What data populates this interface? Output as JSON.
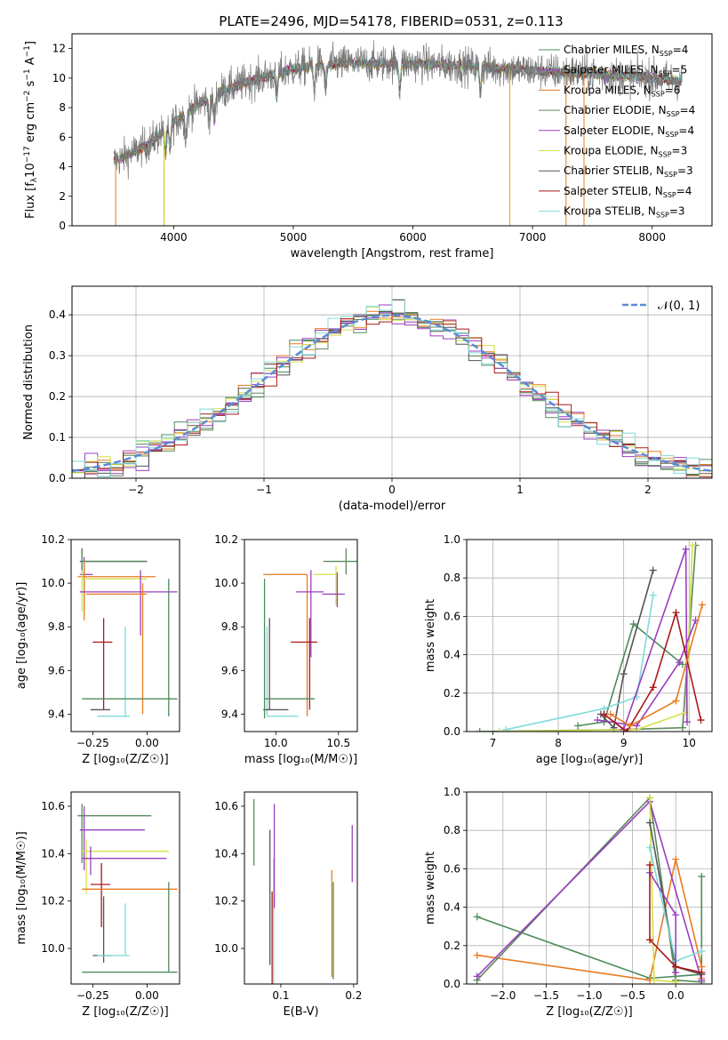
{
  "figure_title": "PLATE=2496, MJD=54178, FIBERID=0531, z=0.113",
  "colors": [
    "#4c8c5c",
    "#9a3fc0",
    "#e87c20",
    "#5a8a5a",
    "#9a3fc0",
    "#d4e04a",
    "#555555",
    "#aa1a1a",
    "#80dada"
  ],
  "model_colors": [
    "#5c9c6c",
    "#9a3fc0",
    "#e87c20",
    "#5a8a5a",
    "#a63fc8",
    "#d4e84a",
    "#555555",
    "#aa1a1a",
    "#80dada"
  ],
  "chart_data": [
    {
      "id": "spectrum",
      "type": "line",
      "title": "PLATE=2496, MJD=54178, FIBERID=0531, z=0.113",
      "xlabel": "wavelength [Angstrom, rest frame]",
      "ylabel": "Flux [f$_\\lambda$10$^{-17}$ erg cm$^{-2}$ s$^{-1}$ A$^{-1}$]",
      "ylabel_main": "Flux [f",
      "ylabel_sub": "λ",
      "ylabel_mid": "10",
      "ylabel_sup": "−17",
      "ylabel_tail": " erg cm",
      "ylabel_sup2": "−2",
      "ylabel_tail2": " s",
      "ylabel_sup3": "−1",
      "ylabel_tail3": " A",
      "ylabel_sup4": "−1",
      "ylabel_end": "]",
      "xlim": [
        3150,
        8500
      ],
      "ylim": [
        0,
        13
      ],
      "xticks": [
        "4000",
        "5000",
        "6000",
        "7000",
        "8000"
      ],
      "xtick_values": [
        4000,
        5000,
        6000,
        7000,
        8000
      ],
      "yticks": [
        "0",
        "2",
        "4",
        "6",
        "8",
        "10",
        "12"
      ],
      "ytick_values": [
        0,
        2,
        4,
        6,
        8,
        10,
        12
      ],
      "continuum": {
        "x": [
          3500,
          3600,
          3800,
          4000,
          4200,
          4400,
          4600,
          4800,
          5000,
          5200,
          5500,
          6000,
          6500,
          7000,
          7500,
          8000,
          8250
        ],
        "y": [
          4.4,
          4.7,
          5.6,
          7.0,
          8.2,
          9.1,
          9.7,
          10.2,
          10.6,
          10.9,
          11.0,
          11.0,
          10.8,
          10.5,
          10.3,
          10.0,
          9.8
        ]
      },
      "legend": [
        {
          "label": "Chabrier MILES, N",
          "sub": "SSP",
          "val": "=4"
        },
        {
          "label": "Salpeter MILES, N",
          "sub": "SSP",
          "val": "=5"
        },
        {
          "label": "Kroupa MILES, N",
          "sub": "SSP",
          "val": "=6"
        },
        {
          "label": "Chabrier ELODIE, N",
          "sub": "SSP",
          "val": "=4"
        },
        {
          "label": "Salpeter ELODIE, N",
          "sub": "SSP",
          "val": "=4"
        },
        {
          "label": "Kroupa ELODIE, N",
          "sub": "SSP",
          "val": "=3"
        },
        {
          "label": "Chabrier STELIB, N",
          "sub": "SSP",
          "val": "=3"
        },
        {
          "label": "Salpeter STELIB, N",
          "sub": "SSP",
          "val": "=4"
        },
        {
          "label": "Kroupa STELIB, N",
          "sub": "SSP",
          "val": "=3"
        }
      ]
    },
    {
      "id": "residuals",
      "type": "step",
      "xlabel": "(data-model)/error",
      "ylabel": "Normed distribution",
      "xlim": [
        -2.5,
        2.5
      ],
      "ylim": [
        0,
        0.47
      ],
      "xticks": [
        "−2",
        "−1",
        "0",
        "1",
        "2"
      ],
      "xtick_values": [
        -2,
        -1,
        0,
        1,
        2
      ],
      "yticks": [
        "0.0",
        "0.1",
        "0.2",
        "0.3",
        "0.4"
      ],
      "ytick_values": [
        0,
        0.1,
        0.2,
        0.3,
        0.4
      ],
      "legend_label": "𝒩(0, 1)",
      "grid": true
    },
    {
      "id": "age-vs-Z",
      "type": "errorbar",
      "xlabel": "Z [log₁₀(Z/Z☉)]",
      "ylabel": "age  [log₁₀(age/yr)]",
      "xlim": [
        -0.35,
        0.15
      ],
      "ylim": [
        9.32,
        10.2
      ],
      "xticks": [
        "−0.25",
        "0.00"
      ],
      "xtick_values": [
        -0.25,
        0.0
      ],
      "yticks": [
        "9.4",
        "9.6",
        "9.8",
        "10.0",
        "10.2"
      ],
      "ytick_values": [
        9.4,
        9.6,
        9.8,
        10.0,
        10.2
      ],
      "points": [
        {
          "x": -0.3,
          "xerr": [
            0.01,
            0.3
          ],
          "y": 10.1,
          "yerr": [
            0.06,
            0.06
          ],
          "c": 6
        },
        {
          "x": -0.3,
          "xerr": [
            0.0,
            0.3
          ],
          "y": 10.1,
          "yerr": [
            0.07,
            0.06
          ],
          "c": 3
        },
        {
          "x": -0.29,
          "xerr": [
            0.02,
            0.04
          ],
          "y": 10.04,
          "yerr": [
            0.16,
            0.08
          ],
          "c": 1
        },
        {
          "x": -0.29,
          "xerr": [
            0.03,
            0.33
          ],
          "y": 10.03,
          "yerr": [
            0.2,
            0.07
          ],
          "c": 2
        },
        {
          "x": -0.3,
          "xerr": [
            0.0,
            0.3
          ],
          "y": 10.02,
          "yerr": [
            0.15,
            0.04
          ],
          "c": 5
        },
        {
          "x": -0.03,
          "xerr": [
            0.28,
            0.17
          ],
          "y": 9.96,
          "yerr": [
            0.2,
            0.1
          ],
          "c": 4
        },
        {
          "x": -0.02,
          "xerr": [
            0.26,
            0.02
          ],
          "y": 9.95,
          "yerr": [
            0.55,
            0.05
          ],
          "c": 2
        },
        {
          "x": -0.2,
          "xerr": [
            0.05,
            0.04
          ],
          "y": 9.73,
          "yerr": [
            0.31,
            0.11
          ],
          "c": 7
        },
        {
          "x": -0.22,
          "xerr": [
            0.04,
            0.05
          ],
          "y": 9.42,
          "yerr": [
            0.0,
            0.0
          ],
          "c": 6
        },
        {
          "x": -0.1,
          "xerr": [
            0.13,
            0.02
          ],
          "y": 9.39,
          "yerr": [
            0.0,
            0.41
          ],
          "c": 8
        },
        {
          "x": 0.1,
          "xerr": [
            0.4,
            0.04
          ],
          "y": 9.47,
          "yerr": [
            0.08,
            0.55
          ],
          "c": 0
        }
      ]
    },
    {
      "id": "age-vs-mass",
      "type": "errorbar",
      "xlabel": "mass [log₁₀(M/M☉)]",
      "xlim": [
        9.75,
        10.65
      ],
      "ylim": [
        9.32,
        10.2
      ],
      "xticks": [
        "10.0",
        "10.5"
      ],
      "xtick_values": [
        10.0,
        10.5
      ],
      "yticks": [
        "9.4",
        "9.6",
        "9.8",
        "10.0",
        "10.2"
      ],
      "ytick_values": [
        9.4,
        9.6,
        9.8,
        10.0,
        10.2
      ],
      "points": [
        {
          "x": 10.56,
          "xerr": [
            0.18,
            0.1
          ],
          "y": 10.1,
          "yerr": [
            0.06,
            0.06
          ],
          "c": 3
        },
        {
          "x": 10.25,
          "xerr": [
            0.35,
            0.0
          ],
          "y": 10.04,
          "yerr": [
            0.65,
            0.0
          ],
          "c": 2
        },
        {
          "x": 10.48,
          "xerr": [
            0.18,
            0.0
          ],
          "y": 10.04,
          "yerr": [
            0.14,
            0.04
          ],
          "c": 5
        },
        {
          "x": 10.49,
          "xerr": [
            0.12,
            0.06
          ],
          "y": 9.95,
          "yerr": [
            0.06,
            0.1
          ],
          "c": 1
        },
        {
          "x": 10.28,
          "xerr": [
            0.12,
            0.1
          ],
          "y": 9.96,
          "yerr": [
            0.3,
            0.1
          ],
          "c": 4
        },
        {
          "x": 10.27,
          "xerr": [
            0.15,
            0.06
          ],
          "y": 9.73,
          "yerr": [
            0.31,
            0.11
          ],
          "c": 7
        },
        {
          "x": 9.93,
          "xerr": [
            0.0,
            0.25
          ],
          "y": 9.39,
          "yerr": [
            0.0,
            0.41
          ],
          "c": 8
        },
        {
          "x": 9.95,
          "xerr": [
            0.05,
            0.15
          ],
          "y": 9.42,
          "yerr": [
            0.0,
            0.42
          ],
          "c": 6
        },
        {
          "x": 9.91,
          "xerr": [
            0.0,
            0.4
          ],
          "y": 9.47,
          "yerr": [
            0.09,
            0.55
          ],
          "c": 0
        }
      ]
    },
    {
      "id": "weight-vs-age",
      "type": "line",
      "xlabel": "age  [log₁₀(age/yr)]",
      "ylabel": "mass weight",
      "xlim": [
        6.6,
        10.35
      ],
      "ylim": [
        0,
        1.0
      ],
      "xticks": [
        "7",
        "8",
        "9",
        "10"
      ],
      "xtick_values": [
        7,
        8,
        9,
        10
      ],
      "yticks": [
        "0.0",
        "0.2",
        "0.4",
        "0.6",
        "0.8",
        "1.0"
      ],
      "ytick_values": [
        0,
        0.2,
        0.4,
        0.6,
        0.8,
        1.0
      ],
      "grid": true,
      "series": [
        {
          "c": 0,
          "x": [
            8.3,
            8.7,
            9.15,
            9.9
          ],
          "y": [
            0.03,
            0.05,
            0.56,
            0.35
          ]
        },
        {
          "c": 3,
          "x": [
            6.8,
            9.0,
            9.9,
            10.1
          ],
          "y": [
            0.0,
            0.01,
            0.02,
            0.97
          ]
        },
        {
          "c": 6,
          "x": [
            8.65,
            8.85,
            9.0,
            9.45
          ],
          "y": [
            0.09,
            0.02,
            0.3,
            0.84
          ]
        },
        {
          "c": 8,
          "x": [
            7.2,
            8.7,
            9.2,
            9.45
          ],
          "y": [
            0.01,
            0.12,
            0.18,
            0.71
          ]
        },
        {
          "c": 5,
          "x": [
            7.1,
            9.2,
            9.95,
            10.05
          ],
          "y": [
            0.0,
            0.01,
            0.1,
            0.97
          ]
        },
        {
          "c": 1,
          "x": [
            8.7,
            9.0,
            9.95,
            9.97
          ],
          "y": [
            0.09,
            0.01,
            0.95,
            0.05
          ]
        },
        {
          "c": 4,
          "x": [
            8.6,
            9.2,
            9.85,
            10.1
          ],
          "y": [
            0.06,
            0.03,
            0.36,
            0.58
          ]
        },
        {
          "c": 7,
          "x": [
            8.7,
            9.05,
            9.45,
            9.8,
            10.18
          ],
          "y": [
            0.09,
            0.0,
            0.23,
            0.62,
            0.06
          ]
        },
        {
          "c": 2,
          "x": [
            8.8,
            9.1,
            9.8,
            10.2
          ],
          "y": [
            0.09,
            0.03,
            0.16,
            0.66
          ]
        }
      ]
    },
    {
      "id": "mass-vs-Z",
      "type": "errorbar",
      "xlabel": "Z [log₁₀(Z/Z☉)]",
      "ylabel": "mass [log₁₀(M/M☉)]",
      "xlim": [
        -0.35,
        0.15
      ],
      "ylim": [
        9.85,
        10.66
      ],
      "xticks": [
        "−0.25",
        "0.00"
      ],
      "xtick_values": [
        -0.25,
        0.0
      ],
      "yticks": [
        "10.0",
        "10.2",
        "10.4",
        "10.6"
      ],
      "ytick_values": [
        10.0,
        10.2,
        10.4,
        10.6
      ],
      "points": [
        {
          "x": -0.3,
          "xerr": [
            0.02,
            0.32
          ],
          "y": 10.56,
          "yerr": [
            0.2,
            0.05
          ],
          "c": 3
        },
        {
          "x": -0.29,
          "xerr": [
            0.02,
            0.28
          ],
          "y": 10.5,
          "yerr": [
            0.17,
            0.1
          ],
          "c": 1
        },
        {
          "x": -0.28,
          "xerr": [
            0.02,
            0.38
          ],
          "y": 10.41,
          "yerr": [
            0.18,
            0.05
          ],
          "c": 5
        },
        {
          "x": -0.26,
          "xerr": [
            0.04,
            0.35
          ],
          "y": 10.38,
          "yerr": [
            0.07,
            0.05
          ],
          "c": 4
        },
        {
          "x": -0.21,
          "xerr": [
            0.05,
            0.04
          ],
          "y": 10.27,
          "yerr": [
            0.18,
            0.09
          ],
          "c": 7
        },
        {
          "x": -0.17,
          "xerr": [
            0.13,
            0.31
          ],
          "y": 10.25,
          "yerr": [
            0.0,
            0.0
          ],
          "c": 2
        },
        {
          "x": -0.2,
          "xerr": [
            0.05,
            0.04
          ],
          "y": 9.97,
          "yerr": [
            0.03,
            0.25
          ],
          "c": 6
        },
        {
          "x": -0.1,
          "xerr": [
            0.13,
            0.02
          ],
          "y": 9.97,
          "yerr": [
            0.0,
            0.22
          ],
          "c": 8
        },
        {
          "x": 0.1,
          "xerr": [
            0.4,
            0.04
          ],
          "y": 9.9,
          "yerr": [
            0.0,
            0.38
          ],
          "c": 0
        }
      ]
    },
    {
      "id": "mass-vs-EBV",
      "type": "errorbar",
      "xlabel": "E(B-V)",
      "xlim": [
        0.05,
        0.205
      ],
      "ylim": [
        9.85,
        10.66
      ],
      "xticks": [
        "0.1",
        "0.2"
      ],
      "xtick_values": [
        0.1,
        0.2
      ],
      "yticks": [
        "10.0",
        "10.2",
        "10.4",
        "10.6"
      ],
      "ytick_values": [
        10.0,
        10.2,
        10.4,
        10.6
      ],
      "points": [
        {
          "x": 0.063,
          "y": 10.49,
          "yerr": [
            0.14,
            0.14
          ],
          "c": 3
        },
        {
          "x": 0.085,
          "y": 10.2,
          "yerr": [
            0.27,
            0.3
          ],
          "c": 6
        },
        {
          "x": 0.088,
          "y": 10.14,
          "yerr": [
            0.3,
            0.1
          ],
          "c": 7
        },
        {
          "x": 0.09,
          "y": 10.1,
          "yerr": [
            0.25,
            0.28
          ],
          "c": 8
        },
        {
          "x": 0.091,
          "y": 10.43,
          "yerr": [
            0.26,
            0.18
          ],
          "c": 1
        },
        {
          "x": 0.17,
          "y": 10.1,
          "yerr": [
            0.22,
            0.23
          ],
          "c": 2
        },
        {
          "x": 0.172,
          "y": 10.08,
          "yerr": [
            0.21,
            0.2
          ],
          "c": 0
        },
        {
          "x": 0.198,
          "y": 10.39,
          "yerr": [
            0.11,
            0.13
          ],
          "c": 4
        }
      ]
    },
    {
      "id": "weight-vs-Z",
      "type": "line",
      "xlabel": "Z [log₁₀(Z/Z☉)]",
      "ylabel": "mass weight",
      "xlim": [
        -2.42,
        0.42
      ],
      "ylim": [
        0,
        1.0
      ],
      "xticks": [
        "−2.0",
        "−1.5",
        "−1.0",
        "−0.5",
        "0.0"
      ],
      "xtick_values": [
        -2.0,
        -1.5,
        -1.0,
        -0.5,
        0.0
      ],
      "yticks": [
        "0.0",
        "0.2",
        "0.4",
        "0.6",
        "0.8",
        "1.0"
      ],
      "ytick_values": [
        0,
        0.2,
        0.4,
        0.6,
        0.8,
        1.0
      ],
      "grid": true,
      "series": [
        {
          "c": 0,
          "x": [
            -2.3,
            -0.3,
            0.3,
            0.3
          ],
          "y": [
            0.35,
            0.03,
            0.05,
            0.56
          ]
        },
        {
          "c": 2,
          "x": [
            -2.3,
            -0.3,
            0.0,
            0.3,
            0.3
          ],
          "y": [
            0.15,
            0.02,
            0.65,
            0.09,
            0.03
          ]
        },
        {
          "c": 3,
          "x": [
            -2.3,
            -0.3,
            0.0,
            0.3
          ],
          "y": [
            0.02,
            0.97,
            0.02,
            0.01
          ]
        },
        {
          "c": 1,
          "x": [
            -2.3,
            -0.3,
            0.3
          ],
          "y": [
            0.04,
            0.95,
            0.02
          ]
        },
        {
          "c": 5,
          "x": [
            -0.3,
            -0.25,
            0.0
          ],
          "y": [
            0.97,
            0.02,
            0.01
          ]
        },
        {
          "c": 6,
          "x": [
            -0.3,
            0.0,
            0.3
          ],
          "y": [
            0.84,
            0.09,
            0.05
          ]
        },
        {
          "c": 8,
          "x": [
            -0.3,
            0.0,
            0.3
          ],
          "y": [
            0.71,
            0.12,
            0.17
          ]
        },
        {
          "c": 4,
          "x": [
            -0.3,
            0.0,
            0.0
          ],
          "y": [
            0.58,
            0.36,
            0.06
          ]
        },
        {
          "c": 7,
          "x": [
            -0.3,
            -0.3,
            0.0,
            0.3
          ],
          "y": [
            0.62,
            0.23,
            0.09,
            0.06
          ]
        }
      ]
    }
  ]
}
